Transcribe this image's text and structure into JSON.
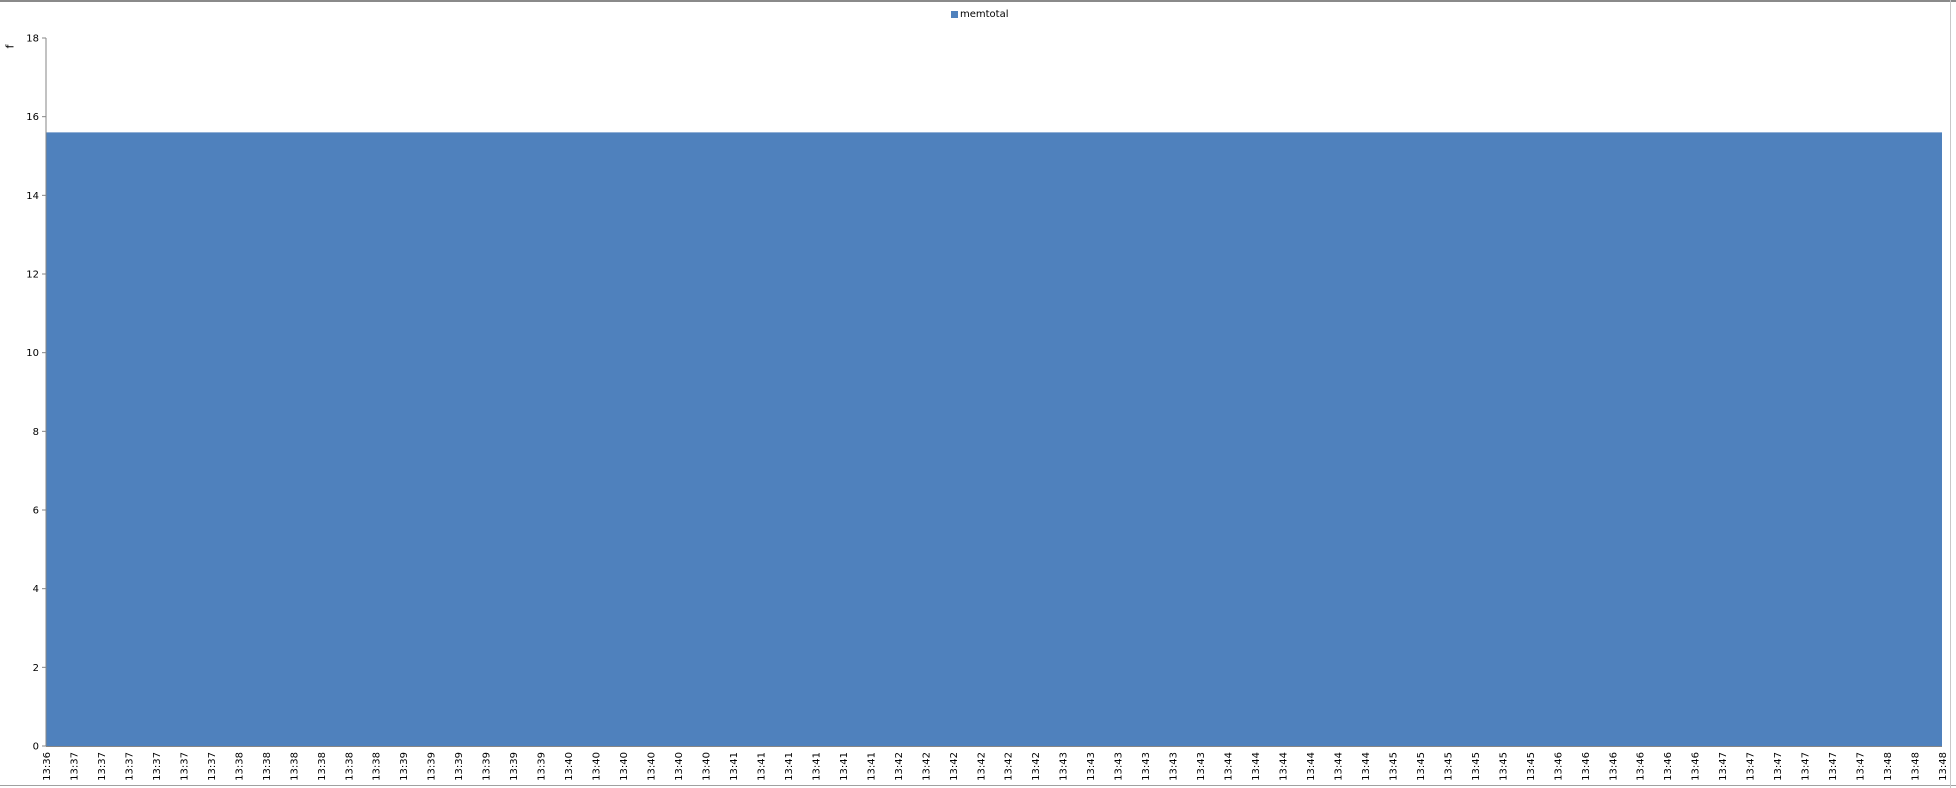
{
  "chart_data": {
    "type": "area",
    "title": "",
    "xlabel": "",
    "ylabel": "f",
    "ylim": [
      0,
      18
    ],
    "yticks": [
      0,
      2,
      4,
      6,
      8,
      10,
      12,
      14,
      16,
      18
    ],
    "grid": false,
    "legend_position": "top-center",
    "categories": [
      "13:36",
      "13:37",
      "13:37",
      "13:37",
      "13:37",
      "13:37",
      "13:37",
      "13:38",
      "13:38",
      "13:38",
      "13:38",
      "13:38",
      "13:38",
      "13:39",
      "13:39",
      "13:39",
      "13:39",
      "13:39",
      "13:39",
      "13:40",
      "13:40",
      "13:40",
      "13:40",
      "13:40",
      "13:40",
      "13:41",
      "13:41",
      "13:41",
      "13:41",
      "13:41",
      "13:41",
      "13:42",
      "13:42",
      "13:42",
      "13:42",
      "13:42",
      "13:42",
      "13:43",
      "13:43",
      "13:43",
      "13:43",
      "13:43",
      "13:43",
      "13:44",
      "13:44",
      "13:44",
      "13:44",
      "13:44",
      "13:44",
      "13:45",
      "13:45",
      "13:45",
      "13:45",
      "13:45",
      "13:45",
      "13:46",
      "13:46",
      "13:46",
      "13:46",
      "13:46",
      "13:46",
      "13:47",
      "13:47",
      "13:47",
      "13:47",
      "13:47",
      "13:47",
      "13:48",
      "13:48",
      "13:48"
    ],
    "series": [
      {
        "name": "memtotal",
        "color": "#4f81bd",
        "constant_value": 15.6
      }
    ]
  }
}
